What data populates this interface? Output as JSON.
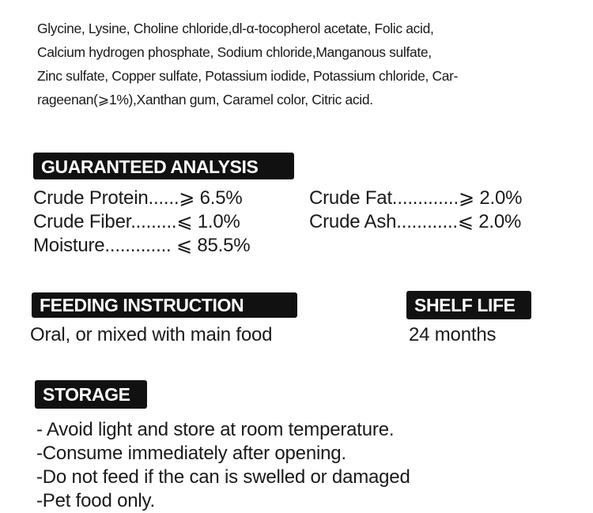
{
  "ingredients": [
    "Glycine, Lysine, Choline chloride,dl-α-tocopherol acetate, Folic acid,",
    "Calcium hydrogen phosphate,  Sodium chloride,Manganous sulfate,",
    "Zinc sulfate, Copper sulfate, Potassium iodide, Potassium chloride, Car-",
    "rageenan(⩾1%),Xanthan gum, Caramel color, Citric acid."
  ],
  "analysis": {
    "title": "GUARANTEED ANALYSIS",
    "left": [
      "Crude Protein......⩾ 6.5%",
      "Crude Fiber.........⩽ 1.0%",
      "Moisture............. ⩽ 85.5%"
    ],
    "right": [
      "Crude Fat.............⩾ 2.0%",
      "Crude Ash............⩽ 2.0%"
    ]
  },
  "feeding": {
    "title": "FEEDING INSTRUCTION",
    "text": "Oral, or mixed with main food"
  },
  "shelf_life": {
    "title": "SHELF LIFE",
    "text": "24 months"
  },
  "storage": {
    "title": "STORAGE",
    "items": [
      "- Avoid light and store at room temperature.",
      "-Consume immediately after opening.",
      "-Do not feed if the can is swelled or damaged",
      "-Pet food only."
    ]
  }
}
